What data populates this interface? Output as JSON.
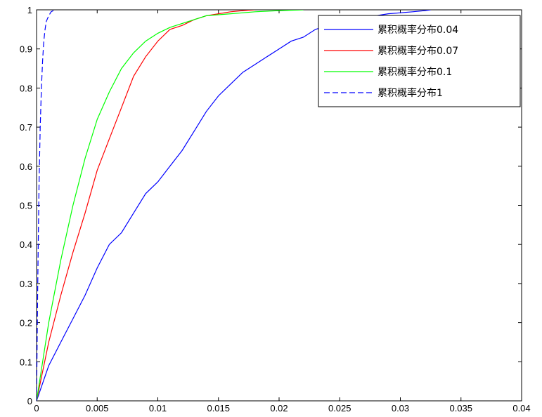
{
  "chart_data": {
    "type": "line",
    "title": "",
    "xlabel": "",
    "ylabel": "",
    "xlim": [
      0,
      0.04
    ],
    "ylim": [
      0,
      1
    ],
    "x_ticks": [
      0,
      0.005,
      0.01,
      0.015,
      0.02,
      0.025,
      0.03,
      0.035,
      0.04
    ],
    "x_tick_labels": [
      "0",
      "0.005",
      "0.01",
      "0.015",
      "0.02",
      "0.025",
      "0.03",
      "0.035",
      "0.04"
    ],
    "y_ticks": [
      0,
      0.1,
      0.2,
      0.3,
      0.4,
      0.5,
      0.6,
      0.7,
      0.8,
      0.9,
      1
    ],
    "y_tick_labels": [
      "0",
      "0.1",
      "0.2",
      "0.3",
      "0.4",
      "0.5",
      "0.6",
      "0.7",
      "0.8",
      "0.9",
      "1"
    ],
    "grid": false,
    "legend_position": "top-right",
    "series": [
      {
        "name": "累积概率分布0.04",
        "color": "#0000ff",
        "dash": "solid",
        "x": [
          0,
          0.001,
          0.002,
          0.003,
          0.004,
          0.005,
          0.006,
          0.007,
          0.008,
          0.009,
          0.01,
          0.011,
          0.012,
          0.013,
          0.014,
          0.015,
          0.016,
          0.017,
          0.018,
          0.019,
          0.02,
          0.021,
          0.022,
          0.023,
          0.025,
          0.027,
          0.029,
          0.031,
          0.032,
          0.0325
        ],
        "y": [
          0,
          0.09,
          0.15,
          0.21,
          0.27,
          0.34,
          0.4,
          0.43,
          0.48,
          0.53,
          0.56,
          0.6,
          0.64,
          0.69,
          0.74,
          0.78,
          0.81,
          0.84,
          0.86,
          0.88,
          0.9,
          0.92,
          0.93,
          0.95,
          0.97,
          0.98,
          0.99,
          0.995,
          0.998,
          1.0
        ]
      },
      {
        "name": "累积概率分布0.07",
        "color": "#ff0000",
        "dash": "solid",
        "x": [
          0,
          0.001,
          0.002,
          0.003,
          0.004,
          0.005,
          0.006,
          0.007,
          0.008,
          0.009,
          0.01,
          0.011,
          0.012,
          0.013,
          0.014,
          0.015,
          0.016,
          0.017,
          0.018
        ],
        "y": [
          0,
          0.15,
          0.27,
          0.38,
          0.48,
          0.59,
          0.67,
          0.75,
          0.83,
          0.88,
          0.92,
          0.95,
          0.96,
          0.975,
          0.985,
          0.99,
          0.995,
          0.998,
          1.0
        ]
      },
      {
        "name": "累积概率分布0.1",
        "color": "#00ff00",
        "dash": "solid",
        "x": [
          0,
          0.001,
          0.002,
          0.003,
          0.004,
          0.005,
          0.006,
          0.007,
          0.008,
          0.009,
          0.01,
          0.011,
          0.012,
          0.013,
          0.014,
          0.016,
          0.018,
          0.02,
          0.022
        ],
        "y": [
          0,
          0.2,
          0.36,
          0.5,
          0.62,
          0.72,
          0.79,
          0.85,
          0.89,
          0.92,
          0.94,
          0.955,
          0.965,
          0.975,
          0.985,
          0.99,
          0.995,
          0.998,
          1.0
        ]
      },
      {
        "name": "累积概率分布1",
        "color": "#0000ff",
        "dash": "dashed",
        "x": [
          0,
          0.0001,
          0.0002,
          0.0003,
          0.0004,
          0.0005,
          0.0006,
          0.0007,
          0.0008,
          0.001,
          0.0012,
          0.0015
        ],
        "y": [
          0,
          0.3,
          0.55,
          0.7,
          0.8,
          0.87,
          0.92,
          0.95,
          0.97,
          0.985,
          0.995,
          1.0
        ]
      }
    ]
  }
}
